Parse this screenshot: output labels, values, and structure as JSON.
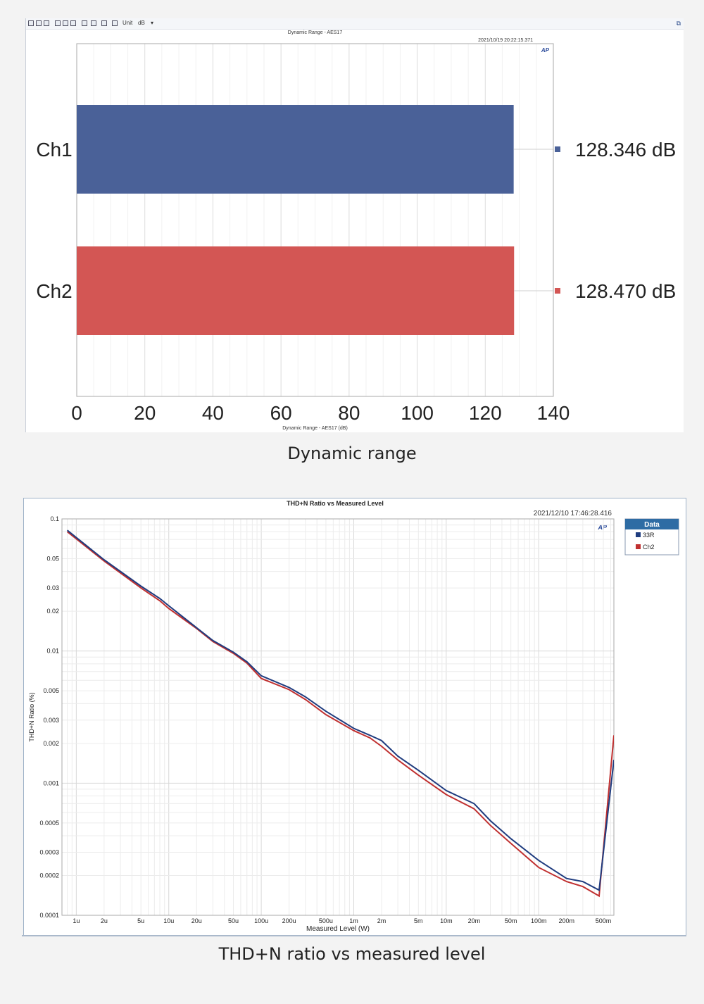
{
  "toolbar": {
    "unit_label": "Unit",
    "unit_value": "dB",
    "dropdown_glyph": "▾",
    "expand_icon": "expand-icon"
  },
  "chart_data": [
    {
      "type": "bar",
      "orientation": "horizontal",
      "title": "Dynamic Range - AES17",
      "timestamp": "2021/10/19 20:22:15.371",
      "xlabel": "Dynamic Range - AES17 (dB)",
      "xlim": [
        0,
        140
      ],
      "xticks": [
        0,
        20,
        40,
        60,
        80,
        100,
        120,
        140
      ],
      "grid": true,
      "categories": [
        "Ch1",
        "Ch2"
      ],
      "values": [
        128.346,
        128.47
      ],
      "value_labels": [
        "128.346 dB",
        "128.470 dB"
      ],
      "colors": [
        "#4a6198",
        "#d35654"
      ],
      "logo": "AP"
    },
    {
      "type": "line",
      "title": "THD+N Ratio vs Measured Level",
      "timestamp": "2021/12/10 17:46:28.416",
      "xlabel": "Measured Level (W)",
      "ylabel": "THD+N Ratio (%)",
      "xscale": "log",
      "yscale": "log",
      "xlim": [
        7e-07,
        0.65
      ],
      "ylim": [
        0.0001,
        0.1
      ],
      "xticks": [
        1e-06,
        2e-06,
        5e-06,
        1e-05,
        2e-05,
        5e-05,
        0.0001,
        0.0002,
        0.0005,
        0.001,
        0.002,
        0.005,
        0.01,
        0.02,
        0.05,
        0.1,
        0.2,
        0.5
      ],
      "xtick_labels": [
        "1u",
        "2u",
        "5u",
        "10u",
        "20u",
        "50u",
        "100u",
        "200u",
        "500u",
        "1m",
        "2m",
        "5m",
        "10m",
        "20m",
        "50m",
        "100m",
        "200m",
        "500m"
      ],
      "yticks": [
        0.1,
        0.05,
        0.03,
        0.02,
        0.01,
        0.005,
        0.003,
        0.002,
        0.001,
        0.0005,
        0.0003,
        0.0002,
        0.0001
      ],
      "ytick_labels": [
        "0.1",
        "0.05",
        "0.03",
        "0.02",
        "0.01",
        "0.005",
        "0.003",
        "0.002",
        "0.001",
        "0.0005",
        "0.0003",
        "0.0002",
        "0.0001"
      ],
      "grid": true,
      "legend": {
        "title": "Data",
        "placement": "right"
      },
      "logo": "AP",
      "series": [
        {
          "name": "33R",
          "color": "#1f3c7f",
          "x": [
            8e-07,
            2e-06,
            5e-06,
            8e-06,
            1e-05,
            2e-05,
            3e-05,
            5e-05,
            7e-05,
            0.0001,
            0.0002,
            0.0003,
            0.0005,
            0.001,
            0.0015,
            0.002,
            0.003,
            0.005,
            0.01,
            0.02,
            0.03,
            0.05,
            0.1,
            0.2,
            0.3,
            0.45,
            0.65
          ],
          "y": [
            0.082,
            0.049,
            0.031,
            0.025,
            0.022,
            0.015,
            0.012,
            0.0098,
            0.0083,
            0.0065,
            0.0053,
            0.0045,
            0.0035,
            0.0026,
            0.0023,
            0.0021,
            0.0016,
            0.00125,
            0.00088,
            0.0007,
            0.00052,
            0.00038,
            0.00026,
            0.00019,
            0.00018,
            0.000155,
            0.0015
          ]
        },
        {
          "name": "Ch2",
          "color": "#c03030",
          "x": [
            8e-07,
            2e-06,
            5e-06,
            8e-06,
            1e-05,
            2e-05,
            3e-05,
            5e-05,
            7e-05,
            0.0001,
            0.0002,
            0.0003,
            0.0005,
            0.001,
            0.0015,
            0.002,
            0.003,
            0.005,
            0.01,
            0.02,
            0.03,
            0.05,
            0.1,
            0.2,
            0.3,
            0.45,
            0.65
          ],
          "y": [
            0.08,
            0.048,
            0.03,
            0.024,
            0.021,
            0.0148,
            0.0118,
            0.0096,
            0.0081,
            0.0062,
            0.0051,
            0.0043,
            0.0033,
            0.0025,
            0.0022,
            0.0019,
            0.0015,
            0.00115,
            0.00082,
            0.00064,
            0.00048,
            0.00035,
            0.00023,
            0.00018,
            0.000165,
            0.00014,
            0.0023
          ]
        }
      ]
    }
  ],
  "captions": {
    "chart1": "Dynamic range",
    "chart2": "THD+N ratio vs measured level"
  }
}
